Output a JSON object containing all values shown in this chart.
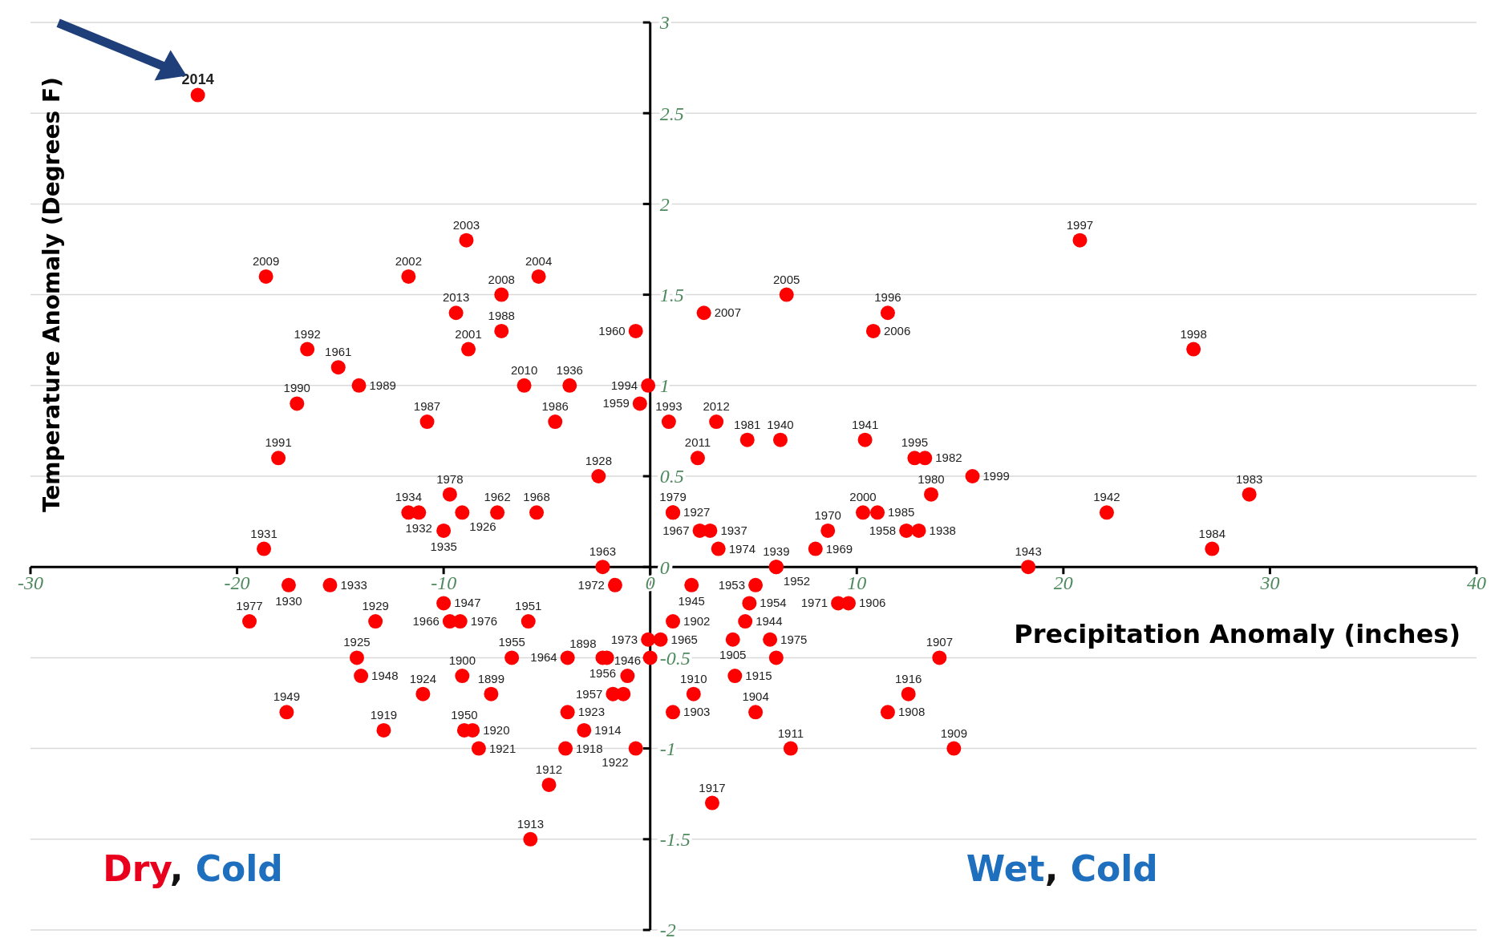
{
  "chart_data": {
    "type": "scatter",
    "xlabel": "Precipitation Anomaly (inches)",
    "ylabel": "Temperature Anomaly (Degrees F)",
    "xlim": [
      -30,
      40
    ],
    "xticks": [
      -30,
      -20,
      -10,
      0,
      10,
      20,
      30,
      40
    ],
    "ylim": [
      -2,
      3
    ],
    "yticks": [
      -2,
      -1.5,
      -1,
      -0.5,
      0,
      0.5,
      1,
      1.5,
      2,
      2.5,
      3
    ],
    "grid": "y",
    "marker": "circle",
    "annotations": [
      "Dry, Cold",
      "Wet, Cold",
      {
        "text": "2014",
        "x": -21.9,
        "y": 2.6
      },
      {
        "text": "2009",
        "x": -18.6,
        "y": 1.6
      },
      {
        "text": "2003",
        "x": -8.9,
        "y": 1.8
      },
      {
        "text": "2002",
        "x": -11.7,
        "y": 1.6
      },
      {
        "text": "2008",
        "x": -7.2,
        "y": 1.5
      },
      {
        "text": "2004",
        "x": -5.4,
        "y": 1.6
      },
      {
        "text": "2013",
        "x": -9.4,
        "y": 1.4
      },
      {
        "text": "1988",
        "x": -7.2,
        "y": 1.3
      },
      {
        "text": "2001",
        "x": -8.8,
        "y": 1.2
      },
      {
        "text": "1992",
        "x": -16.6,
        "y": 1.2
      },
      {
        "text": "1961",
        "x": -15.1,
        "y": 1.1
      },
      {
        "text": "1989",
        "x": -14.1,
        "y": 1.0
      },
      {
        "text": "1990",
        "x": -17.1,
        "y": 0.9
      },
      {
        "text": "1987",
        "x": -10.8,
        "y": 0.8
      },
      {
        "text": "2010",
        "x": -6.1,
        "y": 1.0
      },
      {
        "text": "1936",
        "x": -3.9,
        "y": 1.0
      },
      {
        "text": "1986",
        "x": -4.6,
        "y": 0.8
      },
      {
        "text": "1960",
        "x": -0.7,
        "y": 1.3
      },
      {
        "text": "1994",
        "x": -0.1,
        "y": 1.0
      },
      {
        "text": "1959",
        "x": -0.5,
        "y": 0.9
      },
      {
        "text": "1991",
        "x": -18.0,
        "y": 0.6
      },
      {
        "text": "1928",
        "x": -2.5,
        "y": 0.5
      },
      {
        "text": "1931",
        "x": -18.7,
        "y": 0.1
      },
      {
        "text": "1934",
        "x": -11.7,
        "y": 0.3
      },
      {
        "text": "1932",
        "x": -11.2,
        "y": 0.3
      },
      {
        "text": "1978",
        "x": -9.7,
        "y": 0.4
      },
      {
        "text": "1926",
        "x": -9.1,
        "y": 0.3
      },
      {
        "text": "1935",
        "x": -10.0,
        "y": 0.2
      },
      {
        "text": "1962",
        "x": -7.4,
        "y": 0.3
      },
      {
        "text": "1968",
        "x": -5.5,
        "y": 0.3
      },
      {
        "text": "1963",
        "x": -2.3,
        "y": 0.0
      },
      {
        "text": "1972",
        "x": -1.7,
        "y": -0.1
      },
      {
        "text": "2007",
        "x": 2.6,
        "y": 1.4
      },
      {
        "text": "2005",
        "x": 6.6,
        "y": 1.5
      },
      {
        "text": "2006",
        "x": 10.8,
        "y": 1.3
      },
      {
        "text": "1996",
        "x": 11.5,
        "y": 1.4
      },
      {
        "text": "1997",
        "x": 20.8,
        "y": 1.8
      },
      {
        "text": "1998",
        "x": 26.3,
        "y": 1.2
      },
      {
        "text": "1993",
        "x": 0.9,
        "y": 0.8
      },
      {
        "text": "2012",
        "x": 3.2,
        "y": 0.8
      },
      {
        "text": "1981",
        "x": 4.7,
        "y": 0.7
      },
      {
        "text": "1940",
        "x": 6.3,
        "y": 0.7
      },
      {
        "text": "2011",
        "x": 2.3,
        "y": 0.6
      },
      {
        "text": "1941",
        "x": 10.4,
        "y": 0.7
      },
      {
        "text": "1995",
        "x": 12.8,
        "y": 0.6
      },
      {
        "text": "1982",
        "x": 13.3,
        "y": 0.6
      },
      {
        "text": "1980",
        "x": 13.6,
        "y": 0.4
      },
      {
        "text": "1999",
        "x": 15.6,
        "y": 0.5
      },
      {
        "text": "2000",
        "x": 10.3,
        "y": 0.3
      },
      {
        "text": "1985",
        "x": 11.0,
        "y": 0.3
      },
      {
        "text": "1958",
        "x": 12.4,
        "y": 0.2
      },
      {
        "text": "1938",
        "x": 13.0,
        "y": 0.2
      },
      {
        "text": "1942",
        "x": 22.1,
        "y": 0.3
      },
      {
        "text": "1983",
        "x": 29.0,
        "y": 0.4
      },
      {
        "text": "1984",
        "x": 27.2,
        "y": 0.1
      },
      {
        "text": "1943",
        "x": 18.3,
        "y": 0.0
      },
      {
        "text": "1979",
        "x": 1.1,
        "y": 0.3
      },
      {
        "text": "1927",
        "x": 1.1,
        "y": 0.3
      },
      {
        "text": "1967",
        "x": 2.4,
        "y": 0.2
      },
      {
        "text": "1937",
        "x": 2.9,
        "y": 0.2
      },
      {
        "text": "1974",
        "x": 3.3,
        "y": 0.1
      },
      {
        "text": "1970",
        "x": 8.6,
        "y": 0.2
      },
      {
        "text": "1969",
        "x": 8.0,
        "y": 0.1
      },
      {
        "text": "1939",
        "x": 6.1,
        "y": 0.0
      },
      {
        "text": "1952",
        "x": 6.1,
        "y": 0.0
      },
      {
        "text": "1953",
        "x": 5.1,
        "y": -0.1
      },
      {
        "text": "1954",
        "x": 4.8,
        "y": -0.2
      },
      {
        "text": "1945",
        "x": 2.0,
        "y": -0.1
      },
      {
        "text": "1971",
        "x": 9.1,
        "y": -0.2
      },
      {
        "text": "1906",
        "x": 9.6,
        "y": -0.2
      },
      {
        "text": "1902",
        "x": 1.1,
        "y": -0.3
      },
      {
        "text": "1973",
        "x": -0.1,
        "y": -0.4
      },
      {
        "text": "1965",
        "x": 0.5,
        "y": -0.4
      },
      {
        "text": "1944",
        "x": 4.6,
        "y": -0.3
      },
      {
        "text": "1905",
        "x": 4.0,
        "y": -0.4
      },
      {
        "text": "1975",
        "x": 5.8,
        "y": -0.4
      },
      {
        "text": "1915",
        "x": 4.1,
        "y": -0.6
      },
      {
        "text": "1904",
        "x": 5.1,
        "y": -0.8
      },
      {
        "text": "1911",
        "x": 6.8,
        "y": -1.0
      },
      {
        "text": "1917",
        "x": 3.0,
        "y": -1.3
      },
      {
        "text": "1910",
        "x": 2.1,
        "y": -0.7
      },
      {
        "text": "1903",
        "x": 1.1,
        "y": -0.8
      },
      {
        "text": "1956",
        "x": -2.3,
        "y": -0.5
      },
      {
        "text": "1898",
        "x": -2.1,
        "y": -0.5
      },
      {
        "text": "1946",
        "x": -1.1,
        "y": -0.6
      },
      {
        "text": "1957",
        "x": -1.8,
        "y": -0.7
      },
      {
        "text": "1964",
        "x": -4.0,
        "y": -0.5
      },
      {
        "text": "1923",
        "x": -4.0,
        "y": -0.8
      },
      {
        "text": "1914",
        "x": -3.2,
        "y": -0.9
      },
      {
        "text": "1918",
        "x": -4.1,
        "y": -1.0
      },
      {
        "text": "1912",
        "x": -4.9,
        "y": -1.2
      },
      {
        "text": "1913",
        "x": -5.8,
        "y": -1.5
      },
      {
        "text": "1922",
        "x": -0.7,
        "y": -1.0
      },
      {
        "text": "1951",
        "x": -5.9,
        "y": -0.3
      },
      {
        "text": "1955",
        "x": -6.7,
        "y": -0.5
      },
      {
        "text": "1899",
        "x": -7.7,
        "y": -0.7
      },
      {
        "text": "1900",
        "x": -9.1,
        "y": -0.6
      },
      {
        "text": "1966",
        "x": -9.7,
        "y": -0.3
      },
      {
        "text": "1976",
        "x": -9.2,
        "y": -0.3
      },
      {
        "text": "1947",
        "x": -10.0,
        "y": -0.2
      },
      {
        "text": "1950",
        "x": -9.0,
        "y": -0.9
      },
      {
        "text": "1920",
        "x": -8.6,
        "y": -0.9
      },
      {
        "text": "1921",
        "x": -8.3,
        "y": -1.0
      },
      {
        "text": "1924",
        "x": -11.0,
        "y": -0.7
      },
      {
        "text": "1949",
        "x": -17.6,
        "y": -0.8
      },
      {
        "text": "1919",
        "x": -12.9,
        "y": -0.9
      },
      {
        "text": "1925",
        "x": -14.2,
        "y": -0.5
      },
      {
        "text": "1948",
        "x": -14.0,
        "y": -0.6
      },
      {
        "text": "1929",
        "x": -13.3,
        "y": -0.3
      },
      {
        "text": "1977",
        "x": -19.4,
        "y": -0.3
      },
      {
        "text": "1930",
        "x": -17.5,
        "y": -0.1
      },
      {
        "text": "1933",
        "x": -15.5,
        "y": -0.1
      },
      {
        "text": "1907",
        "x": 14.0,
        "y": -0.5
      },
      {
        "text": "1916",
        "x": 12.5,
        "y": -0.7
      },
      {
        "text": "1908",
        "x": 11.5,
        "y": -0.8
      },
      {
        "text": "1909",
        "x": 14.7,
        "y": -1.0
      }
    ],
    "series": [
      {
        "color": "#ff0000",
        "x": [
          -21.9,
          -18.6,
          -8.9,
          -11.7,
          -7.2,
          -5.4,
          -9.4,
          -7.2,
          -8.8,
          -16.6,
          -15.1,
          -14.1,
          -17.1,
          -10.8,
          -6.1,
          -3.9,
          -4.6,
          -0.7,
          -0.1,
          -0.5,
          -18.0,
          -2.5,
          -18.7,
          -11.7,
          -11.2,
          -9.7,
          -9.1,
          -10.0,
          -7.4,
          -5.5,
          -2.3,
          -1.7,
          2.6,
          6.6,
          10.8,
          11.5,
          20.8,
          26.3,
          0.9,
          3.2,
          4.7,
          6.3,
          2.3,
          10.4,
          12.8,
          13.3,
          13.6,
          15.6,
          10.3,
          11.0,
          12.4,
          13.0,
          22.1,
          29.0,
          27.2,
          18.3,
          1.1,
          1.1,
          2.4,
          2.9,
          3.3,
          8.6,
          8.0,
          6.1,
          6.1,
          5.1,
          4.8,
          2.0,
          9.1,
          9.6,
          1.1,
          -0.1,
          0.5,
          0.0,
          4.6,
          4.0,
          5.8,
          6.1,
          4.1,
          5.1,
          6.8,
          3.0,
          2.1,
          1.1,
          -2.3,
          -2.1,
          -1.1,
          -1.8,
          -1.3,
          -4.0,
          -4.0,
          -3.2,
          -4.1,
          -4.9,
          -5.8,
          -0.7,
          -5.9,
          -6.7,
          -7.7,
          -9.1,
          -9.7,
          -9.2,
          -10.0,
          -9.0,
          -8.6,
          -8.3,
          -11.0,
          -17.6,
          -12.9,
          -14.2,
          -14.0,
          -13.3,
          -19.4,
          -17.5,
          -15.5,
          14.0,
          12.5,
          11.5,
          14.7
        ],
        "values": [
          2.6,
          1.6,
          1.8,
          1.6,
          1.5,
          1.6,
          1.4,
          1.3,
          1.2,
          1.2,
          1.1,
          1.0,
          0.9,
          0.8,
          1.0,
          1.0,
          0.8,
          1.3,
          1.0,
          0.9,
          0.6,
          0.5,
          0.1,
          0.3,
          0.3,
          0.4,
          0.3,
          0.2,
          0.3,
          0.3,
          0.0,
          -0.1,
          1.4,
          1.5,
          1.3,
          1.4,
          1.8,
          1.2,
          0.8,
          0.8,
          0.7,
          0.7,
          0.6,
          0.7,
          0.6,
          0.6,
          0.4,
          0.5,
          0.3,
          0.3,
          0.2,
          0.2,
          0.3,
          0.4,
          0.1,
          0.0,
          0.3,
          0.3,
          0.2,
          0.2,
          0.1,
          0.2,
          0.1,
          0.0,
          0.0,
          -0.1,
          -0.2,
          -0.1,
          -0.2,
          -0.2,
          -0.3,
          -0.4,
          -0.4,
          -0.5,
          -0.3,
          -0.4,
          -0.4,
          -0.5,
          -0.6,
          -0.8,
          -1.0,
          -1.3,
          -0.7,
          -0.8,
          -0.5,
          -0.5,
          -0.6,
          -0.7,
          -0.7,
          -0.5,
          -0.8,
          -0.9,
          -1.0,
          -1.2,
          -1.5,
          -1.0,
          -0.3,
          -0.5,
          -0.7,
          -0.6,
          -0.3,
          -0.3,
          -0.2,
          -0.9,
          -0.9,
          -1.0,
          -0.7,
          -0.8,
          -0.9,
          -0.5,
          -0.6,
          -0.3,
          -0.3,
          -0.1,
          -0.1,
          -0.5,
          -0.7,
          -0.8,
          -1.0
        ]
      }
    ]
  }
}
